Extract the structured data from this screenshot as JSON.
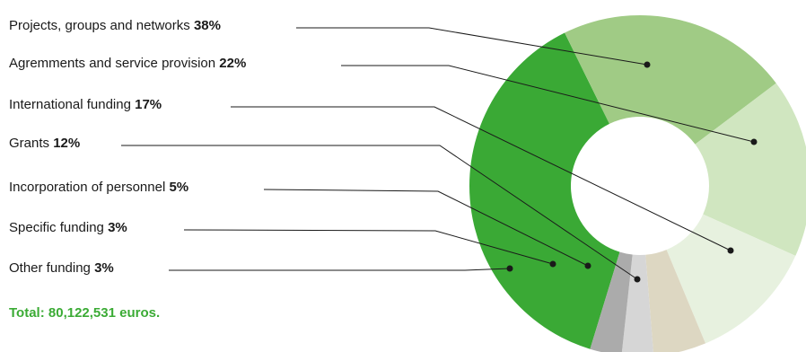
{
  "chart_data": {
    "type": "pie",
    "style": "donut",
    "categories": [
      "Projects, groups and networks",
      "Agremments and service provision",
      "International funding",
      "Grants",
      "Incorporation of personnel",
      "Specific funding",
      "Other funding"
    ],
    "values": [
      38,
      22,
      17,
      12,
      5,
      3,
      3
    ],
    "value_labels": [
      "38%",
      "22%",
      "17%",
      "12%",
      "5%",
      "3%",
      "3%"
    ],
    "unit": "%",
    "colors": [
      "#3aa935",
      "#a0cb85",
      "#d0e6c0",
      "#e7f1df",
      "#ddd7c2",
      "#d6d6d6",
      "#ababab"
    ],
    "total_label": "Total: 80,122,531 euros.",
    "legend": "left, leader lines to slices"
  }
}
